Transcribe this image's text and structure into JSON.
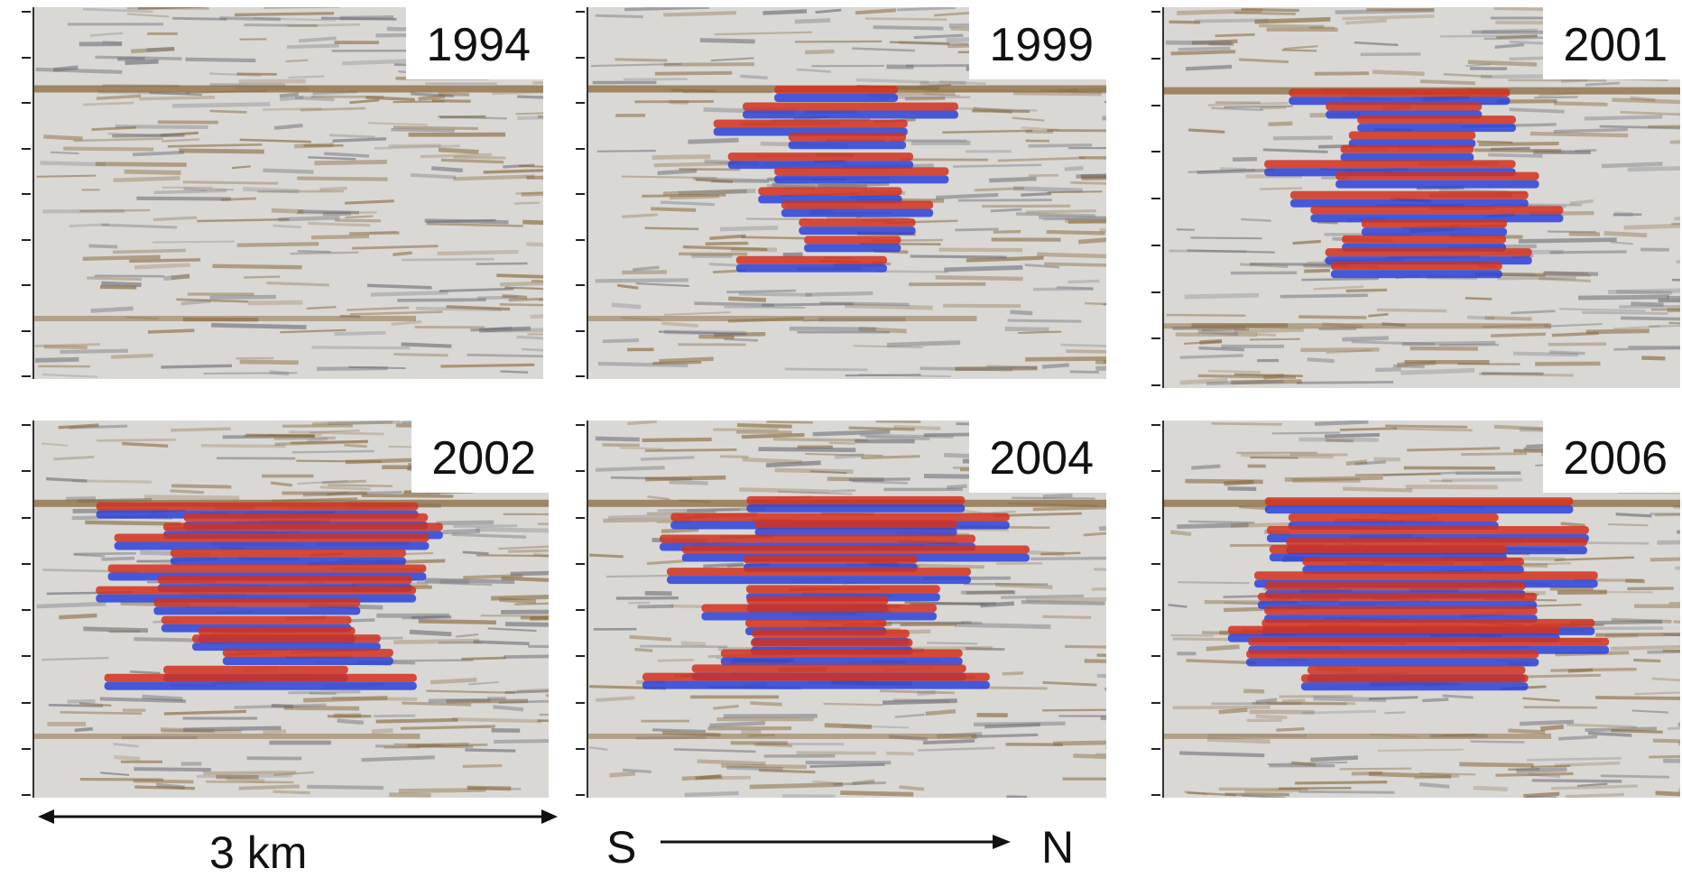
{
  "panels": [
    {
      "year": "1994",
      "intensity": 0.0
    },
    {
      "year": "1999",
      "intensity": 0.45
    },
    {
      "year": "2001",
      "intensity": 0.7
    },
    {
      "year": "2002",
      "intensity": 0.85
    },
    {
      "year": "2004",
      "intensity": 0.95
    },
    {
      "year": "2006",
      "intensity": 1.0
    }
  ],
  "scale_label": "3 km",
  "direction": {
    "start": "S",
    "end": "N"
  },
  "colors": {
    "background": "#d9d8d5",
    "brown": "#8a6a3e",
    "grey": "#707078",
    "red": "#d4301c",
    "blue": "#2a42d8"
  }
}
